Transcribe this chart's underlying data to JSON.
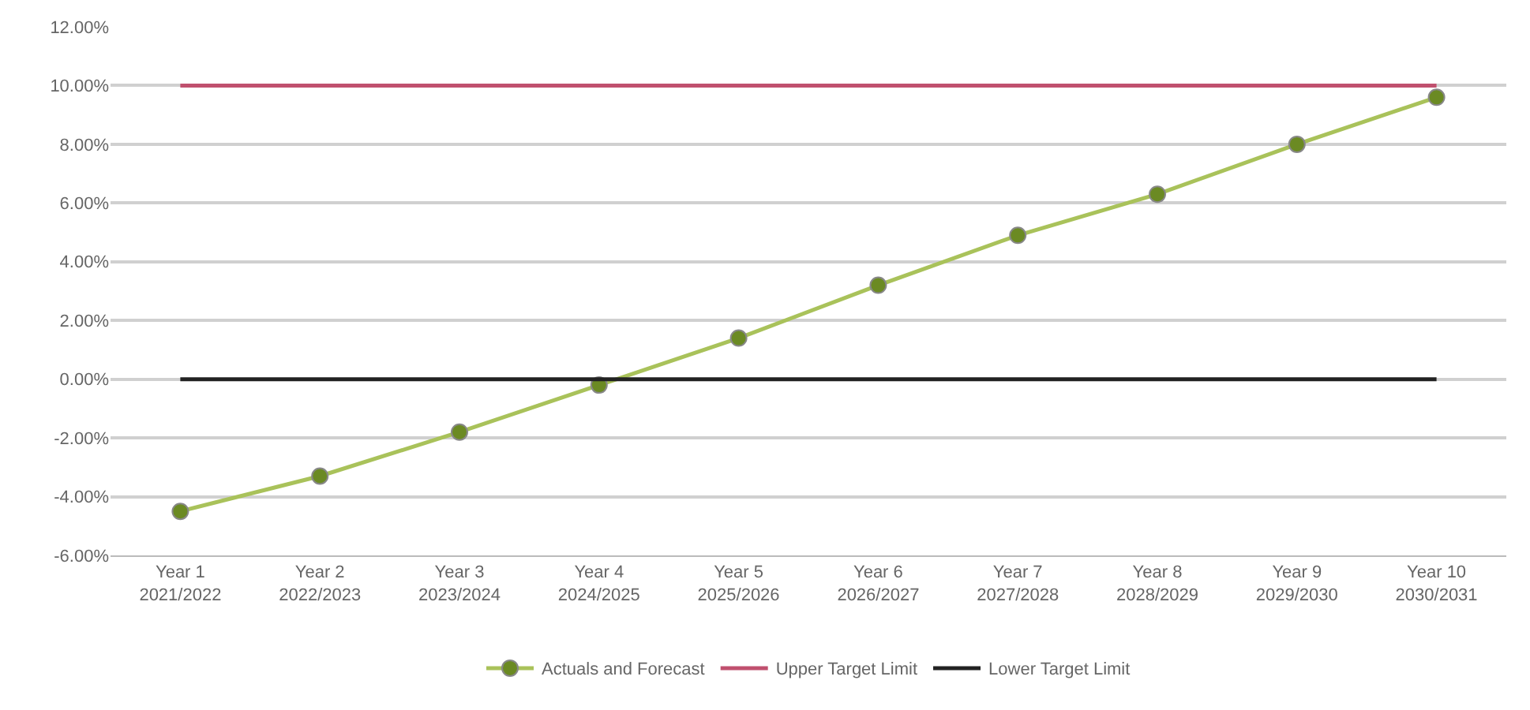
{
  "chart_data": {
    "type": "line",
    "categories": [
      "Year 1\n2021/2022",
      "Year 2\n2022/2023",
      "Year 3\n2023/2024",
      "Year 4\n2024/2025",
      "Year 5\n2025/2026",
      "Year 6\n2026/2027",
      "Year 7\n2027/2028",
      "Year 8\n2028/2029",
      "Year 9\n2029/2030",
      "Year 10\n2030/2031"
    ],
    "series": [
      {
        "name": "Actuals and Forecast",
        "color": "#a9c25a",
        "marker": "circle",
        "values": [
          -4.5,
          -3.3,
          -1.8,
          -0.2,
          1.4,
          3.2,
          4.9,
          6.3,
          8.0,
          9.6
        ]
      },
      {
        "name": "Upper Target Limit",
        "color": "#c0506e",
        "marker": "none",
        "values": [
          10,
          10,
          10,
          10,
          10,
          10,
          10,
          10,
          10,
          10
        ]
      },
      {
        "name": "Lower Target Limit",
        "color": "#222222",
        "marker": "none",
        "values": [
          0,
          0,
          0,
          0,
          0,
          0,
          0,
          0,
          0,
          0
        ]
      }
    ],
    "ylim": [
      -6,
      12
    ],
    "yticks": [
      {
        "value": -6,
        "label": "-6.00%"
      },
      {
        "value": -4,
        "label": "-4.00%"
      },
      {
        "value": -2,
        "label": "-2.00%"
      },
      {
        "value": 0,
        "label": "0.00%"
      },
      {
        "value": 2,
        "label": "2.00%"
      },
      {
        "value": 4,
        "label": "4.00%"
      },
      {
        "value": 6,
        "label": "6.00%"
      },
      {
        "value": 8,
        "label": "8.00%"
      },
      {
        "value": 10,
        "label": "10.00%"
      },
      {
        "value": 12,
        "label": "12.00%"
      }
    ],
    "grid": "y",
    "legend": "bottom",
    "line_style": "solid"
  }
}
